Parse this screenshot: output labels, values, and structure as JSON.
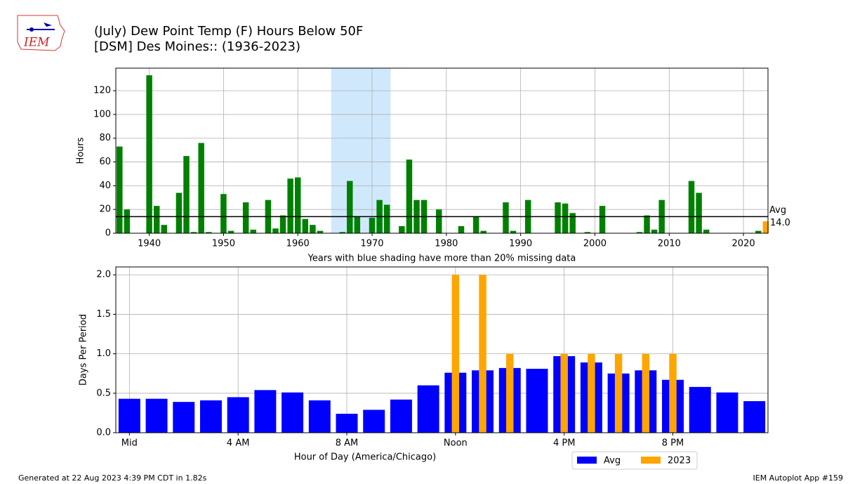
{
  "header": {
    "title": [
      "(July) Dew Point Temp (F) Hours Below 50F",
      "[DSM] Des Moines:: (1936-2023)"
    ],
    "logo": "IEM"
  },
  "footer": {
    "left": "Generated at 22 Aug 2023 4:39 PM CDT in 1.82s",
    "right": "IEM Autoplot App #159"
  },
  "chart_data": [
    {
      "type": "bar",
      "y_label": "Hours",
      "note": "Years with blue shading have more than 20% missing data",
      "x": [
        1936,
        1937,
        1938,
        1939,
        1940,
        1941,
        1942,
        1943,
        1944,
        1945,
        1946,
        1947,
        1948,
        1949,
        1950,
        1951,
        1952,
        1953,
        1954,
        1955,
        1956,
        1957,
        1958,
        1959,
        1960,
        1961,
        1962,
        1963,
        1964,
        1965,
        1966,
        1967,
        1968,
        1969,
        1970,
        1971,
        1972,
        1973,
        1974,
        1975,
        1976,
        1977,
        1978,
        1979,
        1980,
        1981,
        1982,
        1983,
        1984,
        1985,
        1986,
        1987,
        1988,
        1989,
        1990,
        1991,
        1992,
        1993,
        1994,
        1995,
        1996,
        1997,
        1998,
        1999,
        2000,
        2001,
        2002,
        2003,
        2004,
        2005,
        2006,
        2007,
        2008,
        2009,
        2010,
        2011,
        2012,
        2013,
        2014,
        2015,
        2016,
        2017,
        2018,
        2019,
        2020,
        2021,
        2022,
        2023
      ],
      "values": [
        73,
        20,
        0,
        0,
        133,
        23,
        7,
        0,
        34,
        65,
        1,
        76,
        1,
        0,
        33,
        2,
        0,
        26,
        3,
        0,
        28,
        4,
        15,
        46,
        47,
        12,
        7,
        2,
        0,
        0,
        1,
        44,
        14,
        0,
        13,
        28,
        24,
        0,
        6,
        62,
        28,
        28,
        0,
        20,
        0,
        0,
        6,
        0,
        14,
        2,
        0,
        0,
        26,
        2,
        0,
        28,
        0,
        0,
        0,
        26,
        25,
        17,
        0,
        1,
        0,
        23,
        0,
        0,
        0,
        0,
        1,
        15,
        3,
        28,
        0,
        0,
        0,
        44,
        34,
        3,
        0,
        0,
        0,
        0,
        0,
        0,
        2,
        10
      ],
      "color": "green",
      "highlight_color": "orange",
      "shade": [
        1964.5,
        1972.5
      ],
      "shade_color": "#d0e8fc",
      "average": 14.0,
      "average_label": "Avg",
      "average_value_label": "14.0",
      "xlim": [
        1935.5,
        2023.3
      ],
      "ylim": [
        0,
        139
      ],
      "xticks": [
        1940,
        1950,
        1960,
        1970,
        1980,
        1990,
        2000,
        2010,
        2020
      ],
      "yticks": [
        0,
        20,
        40,
        60,
        80,
        100,
        120
      ],
      "grid": true
    },
    {
      "type": "bar",
      "x_label": "Hour of Day (America/Chicago)",
      "y_label": "Days Per Period",
      "x": [
        0,
        1,
        2,
        3,
        4,
        5,
        6,
        7,
        8,
        9,
        10,
        11,
        12,
        13,
        14,
        15,
        16,
        17,
        18,
        19,
        20,
        21,
        22,
        23
      ],
      "series": [
        {
          "name": "Avg",
          "color": "blue",
          "values": [
            0.43,
            0.43,
            0.39,
            0.41,
            0.45,
            0.54,
            0.51,
            0.41,
            0.24,
            0.29,
            0.42,
            0.6,
            0.76,
            0.79,
            0.82,
            0.81,
            0.97,
            0.89,
            0.75,
            0.79,
            0.67,
            0.58,
            0.51,
            0.4
          ]
        },
        {
          "name": "2023",
          "color": "orange",
          "values": [
            0,
            0,
            0,
            0,
            0,
            0,
            0,
            0,
            0,
            0,
            0,
            0,
            2,
            2,
            1,
            0,
            1,
            1,
            1,
            1,
            1,
            0,
            0,
            0
          ]
        }
      ],
      "xlim": [
        -0.5,
        23.5
      ],
      "ylim": [
        0,
        2.1
      ],
      "xticks": [
        {
          "value": 0,
          "label": "Mid"
        },
        {
          "value": 4,
          "label": "4 AM"
        },
        {
          "value": 8,
          "label": "8 AM"
        },
        {
          "value": 12,
          "label": "Noon"
        },
        {
          "value": 16,
          "label": "4 PM"
        },
        {
          "value": 20,
          "label": "8 PM"
        }
      ],
      "yticks": [
        {
          "value": 0,
          "label": "0.0"
        },
        0.5,
        {
          "value": 1,
          "label": "1.0"
        },
        1.5,
        {
          "value": 2,
          "label": "2.0"
        }
      ],
      "grid": true,
      "legend": "below"
    }
  ]
}
